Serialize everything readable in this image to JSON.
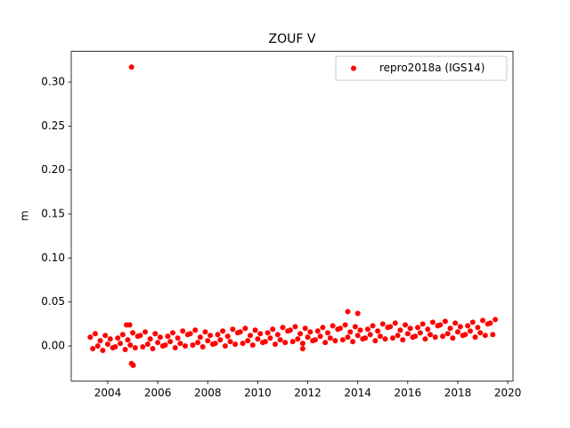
{
  "chart_data": {
    "type": "scatter",
    "title": "ZOUF V",
    "ylabel": "m",
    "xlim": [
      2002.54,
      2020.21
    ],
    "ylim": [
      -0.0397,
      0.3349
    ],
    "xticks": [
      2004,
      2006,
      2008,
      2010,
      2012,
      2014,
      2016,
      2018,
      2020
    ],
    "yticks": [
      {
        "value": 0,
        "label": "0.00"
      },
      0.05,
      {
        "value": 0.1,
        "label": "0.10"
      },
      0.15,
      {
        "value": 0.2,
        "label": "0.20"
      },
      0.25,
      {
        "value": 0.3,
        "label": "0.30"
      }
    ],
    "legend": "upper right",
    "series": [
      {
        "name": "repro2018a (IGS14)",
        "color": "#ff0000",
        "x": [
          2003.3,
          2003.4,
          2003.5,
          2003.6,
          2003.7,
          2003.8,
          2003.9,
          2004.0,
          2004.1,
          2004.2,
          2004.3,
          2004.4,
          2004.5,
          2004.6,
          2004.7,
          2004.8,
          2004.9,
          2005.0,
          2005.1,
          2005.2,
          2005.3,
          2005.4,
          2005.5,
          2005.6,
          2005.7,
          2005.8,
          2005.9,
          2006.0,
          2006.1,
          2006.2,
          2006.3,
          2006.4,
          2006.5,
          2006.6,
          2006.7,
          2006.8,
          2006.9,
          2007.0,
          2007.1,
          2007.2,
          2007.3,
          2007.4,
          2007.5,
          2007.6,
          2007.7,
          2007.8,
          2007.9,
          2008.0,
          2008.1,
          2008.2,
          2008.3,
          2008.4,
          2008.5,
          2008.6,
          2008.7,
          2008.8,
          2008.9,
          2009.0,
          2009.1,
          2009.2,
          2009.3,
          2009.4,
          2009.5,
          2009.6,
          2009.7,
          2009.8,
          2009.9,
          2010.0,
          2010.1,
          2010.2,
          2010.3,
          2010.4,
          2010.5,
          2010.6,
          2010.7,
          2010.8,
          2010.9,
          2011.0,
          2011.1,
          2011.2,
          2011.3,
          2011.4,
          2011.5,
          2011.6,
          2011.7,
          2011.8,
          2011.9,
          2012.0,
          2012.1,
          2012.2,
          2012.3,
          2012.4,
          2012.5,
          2012.6,
          2012.7,
          2012.8,
          2012.9,
          2013.0,
          2013.1,
          2013.2,
          2013.3,
          2013.4,
          2013.5,
          2013.6,
          2013.7,
          2013.8,
          2013.9,
          2014.0,
          2014.1,
          2014.2,
          2014.3,
          2014.4,
          2014.5,
          2014.6,
          2014.7,
          2014.8,
          2014.9,
          2015.0,
          2015.1,
          2015.2,
          2015.3,
          2015.4,
          2015.5,
          2015.6,
          2015.7,
          2015.8,
          2015.9,
          2016.0,
          2016.1,
          2016.2,
          2016.3,
          2016.4,
          2016.5,
          2016.6,
          2016.7,
          2016.8,
          2016.9,
          2017.0,
          2017.1,
          2017.2,
          2017.3,
          2017.4,
          2017.5,
          2017.6,
          2017.7,
          2017.8,
          2017.9,
          2018.0,
          2018.1,
          2018.2,
          2018.3,
          2018.4,
          2018.5,
          2018.6,
          2018.7,
          2018.8,
          2018.9,
          2019.0,
          2019.1,
          2019.2,
          2019.3,
          2019.4,
          2019.5,
          2004.95,
          2004.95,
          2005.02,
          2004.75,
          2004.88,
          2013.6,
          2014.0,
          2011.8
        ],
        "values": [
          0.01,
          -0.003,
          0.014,
          0.0,
          0.006,
          -0.005,
          0.012,
          0.002,
          0.008,
          -0.002,
          -0.001,
          0.009,
          0.003,
          0.013,
          -0.004,
          0.007,
          0.001,
          0.015,
          -0.002,
          0.011,
          0.012,
          -0.001,
          0.016,
          0.002,
          0.008,
          -0.003,
          0.014,
          0.004,
          0.01,
          0.0,
          0.001,
          0.011,
          0.005,
          0.015,
          -0.002,
          0.009,
          0.003,
          0.017,
          0.0,
          0.013,
          0.014,
          0.001,
          0.018,
          0.004,
          0.01,
          -0.001,
          0.016,
          0.006,
          0.012,
          0.002,
          0.003,
          0.013,
          0.007,
          0.017,
          0.0,
          0.011,
          0.005,
          0.019,
          0.002,
          0.015,
          0.016,
          0.003,
          0.02,
          0.006,
          0.012,
          0.001,
          0.018,
          0.008,
          0.014,
          0.004,
          0.005,
          0.015,
          0.009,
          0.019,
          0.002,
          0.013,
          0.007,
          0.021,
          0.004,
          0.017,
          0.018,
          0.005,
          0.022,
          0.008,
          0.014,
          0.003,
          0.02,
          0.01,
          0.016,
          0.006,
          0.007,
          0.017,
          0.011,
          0.021,
          0.004,
          0.015,
          0.009,
          0.023,
          0.006,
          0.019,
          0.02,
          0.007,
          0.024,
          0.01,
          0.016,
          0.005,
          0.022,
          0.012,
          0.018,
          0.008,
          0.009,
          0.019,
          0.013,
          0.023,
          0.006,
          0.017,
          0.011,
          0.025,
          0.008,
          0.021,
          0.022,
          0.009,
          0.026,
          0.012,
          0.018,
          0.007,
          0.024,
          0.014,
          0.02,
          0.01,
          0.011,
          0.021,
          0.015,
          0.025,
          0.008,
          0.019,
          0.013,
          0.027,
          0.01,
          0.023,
          0.024,
          0.011,
          0.028,
          0.014,
          0.02,
          0.009,
          0.026,
          0.016,
          0.022,
          0.012,
          0.013,
          0.023,
          0.017,
          0.027,
          0.01,
          0.021,
          0.015,
          0.029,
          0.012,
          0.025,
          0.026,
          0.013,
          0.03,
          0.317,
          -0.02,
          -0.022,
          0.024,
          0.024,
          0.039,
          0.037,
          -0.003
        ]
      }
    ]
  }
}
